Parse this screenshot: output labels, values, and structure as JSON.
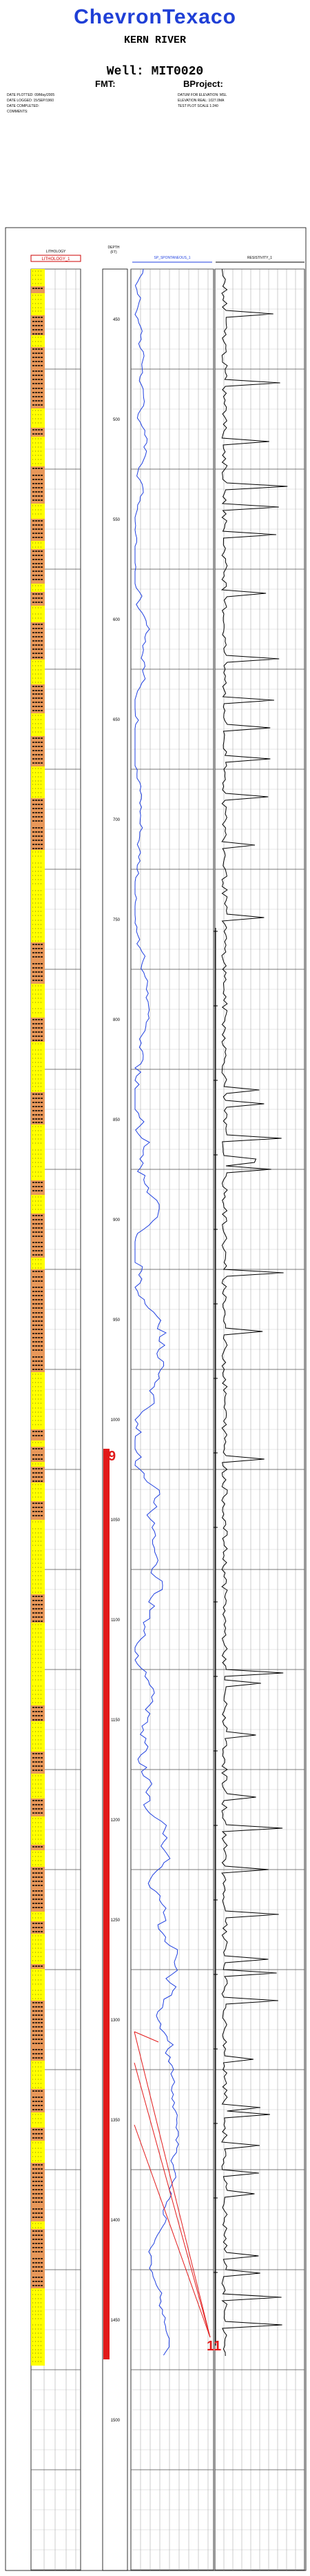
{
  "header": {
    "company": "ChevronTexaco",
    "field": "KERN RIVER",
    "well": "Well: MIT0020",
    "fmt": "FMT:",
    "bproject": "BProject:",
    "left_info": [
      "DATE PLOTTED: 09/May/2005",
      "DATE LOGGED: 15/SEP/1960",
      "DATE COMPLETED:",
      "COMMENTS:"
    ],
    "right_info": [
      "DATUM FOR ELEVATION: MSL",
      "ELEVATION REAL: 1027.0MA",
      "TEST PLOT SCALE 1:240"
    ]
  },
  "columns": {
    "lithology_title": "LITHOLOGY",
    "lithology_sub": "LITHOLOGY_1",
    "depth_title": "DEPTH",
    "depth_unit": "(FT)",
    "sp_title": "SP_SPONTANEOUS_1",
    "resistivity_title": "RESISTIVITY_1"
  },
  "depth_labels": [
    "450",
    "500",
    "550",
    "600",
    "650",
    "700",
    "750",
    "800",
    "850",
    "900",
    "950",
    "1000",
    "1050",
    "1100",
    "1150",
    "1200",
    "1250",
    "1300",
    "1350",
    "1400",
    "1450",
    "1500"
  ],
  "markers": {
    "top": "9",
    "bottom": "11"
  },
  "colors": {
    "sand": "#ffff00",
    "shale": "#e8985a",
    "sp_curve": "#1e3fe0",
    "resistivity_curve": "#000000",
    "marker": "#e21a1a",
    "title_blue": "#1f3fd6"
  }
}
